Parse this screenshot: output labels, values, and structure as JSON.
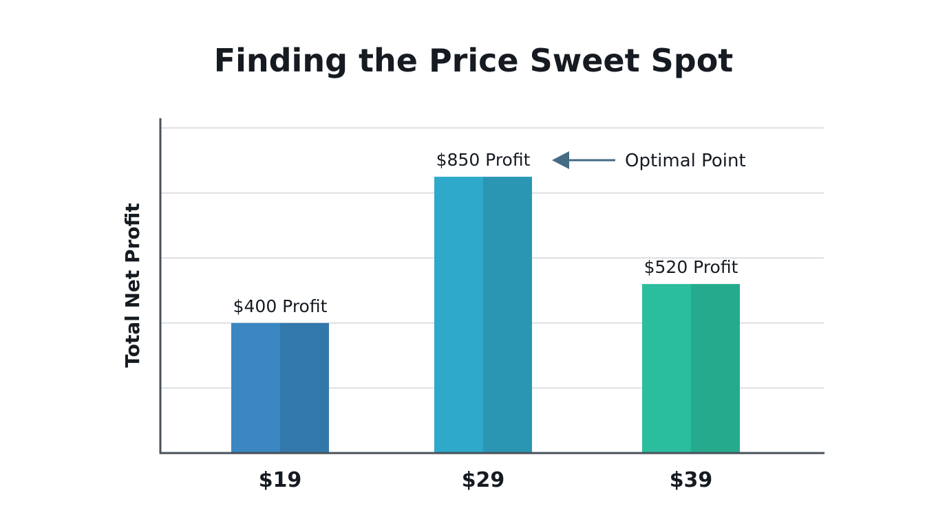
{
  "chart_data": {
    "type": "bar",
    "title": "Finding the Price Sweet Spot",
    "xlabel": "",
    "ylabel": "Total Net Profit",
    "categories": [
      "$19",
      "$29",
      "$39"
    ],
    "values": [
      400,
      850,
      520
    ],
    "data_labels": [
      "$400 Profit",
      "$850 Profit",
      "$520 Profit"
    ],
    "ylim": [
      0,
      1030
    ],
    "gridlines": [
      200,
      400,
      600,
      800,
      1000
    ],
    "grid": true,
    "y_tick_labels_shown": false,
    "colors": [
      {
        "light": "#3a87c2",
        "dark": "#3278ab"
      },
      {
        "light": "#2ea9ca",
        "dark": "#2a96b3"
      },
      {
        "light": "#2abd9e",
        "dark": "#25aa8d"
      }
    ],
    "annotation": {
      "text": "Optimal Point",
      "target": "$29",
      "color": "#456b85"
    }
  }
}
